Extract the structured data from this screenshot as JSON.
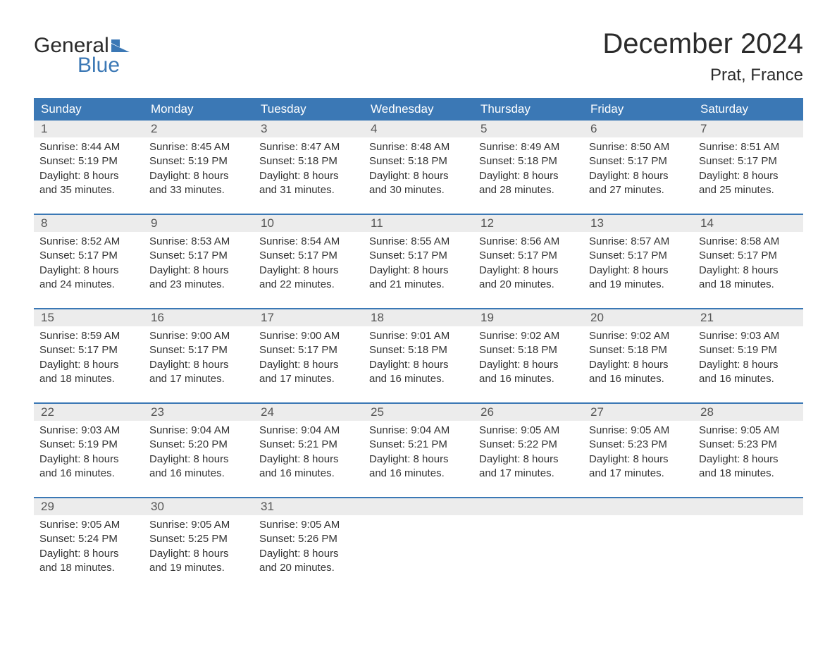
{
  "logo": {
    "text1": "General",
    "text2": "Blue",
    "flag_color": "#3b78b5"
  },
  "title": "December 2024",
  "location": "Prat, France",
  "colors": {
    "header_bg": "#3b78b5",
    "header_text": "#ffffff",
    "strip_bg": "#ececec",
    "border": "#3b78b5",
    "text": "#333333"
  },
  "day_headers": [
    "Sunday",
    "Monday",
    "Tuesday",
    "Wednesday",
    "Thursday",
    "Friday",
    "Saturday"
  ],
  "weeks": [
    [
      {
        "n": "1",
        "sunrise": "8:44 AM",
        "sunset": "5:19 PM",
        "daylight": "8 hours and 35 minutes."
      },
      {
        "n": "2",
        "sunrise": "8:45 AM",
        "sunset": "5:19 PM",
        "daylight": "8 hours and 33 minutes."
      },
      {
        "n": "3",
        "sunrise": "8:47 AM",
        "sunset": "5:18 PM",
        "daylight": "8 hours and 31 minutes."
      },
      {
        "n": "4",
        "sunrise": "8:48 AM",
        "sunset": "5:18 PM",
        "daylight": "8 hours and 30 minutes."
      },
      {
        "n": "5",
        "sunrise": "8:49 AM",
        "sunset": "5:18 PM",
        "daylight": "8 hours and 28 minutes."
      },
      {
        "n": "6",
        "sunrise": "8:50 AM",
        "sunset": "5:17 PM",
        "daylight": "8 hours and 27 minutes."
      },
      {
        "n": "7",
        "sunrise": "8:51 AM",
        "sunset": "5:17 PM",
        "daylight": "8 hours and 25 minutes."
      }
    ],
    [
      {
        "n": "8",
        "sunrise": "8:52 AM",
        "sunset": "5:17 PM",
        "daylight": "8 hours and 24 minutes."
      },
      {
        "n": "9",
        "sunrise": "8:53 AM",
        "sunset": "5:17 PM",
        "daylight": "8 hours and 23 minutes."
      },
      {
        "n": "10",
        "sunrise": "8:54 AM",
        "sunset": "5:17 PM",
        "daylight": "8 hours and 22 minutes."
      },
      {
        "n": "11",
        "sunrise": "8:55 AM",
        "sunset": "5:17 PM",
        "daylight": "8 hours and 21 minutes."
      },
      {
        "n": "12",
        "sunrise": "8:56 AM",
        "sunset": "5:17 PM",
        "daylight": "8 hours and 20 minutes."
      },
      {
        "n": "13",
        "sunrise": "8:57 AM",
        "sunset": "5:17 PM",
        "daylight": "8 hours and 19 minutes."
      },
      {
        "n": "14",
        "sunrise": "8:58 AM",
        "sunset": "5:17 PM",
        "daylight": "8 hours and 18 minutes."
      }
    ],
    [
      {
        "n": "15",
        "sunrise": "8:59 AM",
        "sunset": "5:17 PM",
        "daylight": "8 hours and 18 minutes."
      },
      {
        "n": "16",
        "sunrise": "9:00 AM",
        "sunset": "5:17 PM",
        "daylight": "8 hours and 17 minutes."
      },
      {
        "n": "17",
        "sunrise": "9:00 AM",
        "sunset": "5:17 PM",
        "daylight": "8 hours and 17 minutes."
      },
      {
        "n": "18",
        "sunrise": "9:01 AM",
        "sunset": "5:18 PM",
        "daylight": "8 hours and 16 minutes."
      },
      {
        "n": "19",
        "sunrise": "9:02 AM",
        "sunset": "5:18 PM",
        "daylight": "8 hours and 16 minutes."
      },
      {
        "n": "20",
        "sunrise": "9:02 AM",
        "sunset": "5:18 PM",
        "daylight": "8 hours and 16 minutes."
      },
      {
        "n": "21",
        "sunrise": "9:03 AM",
        "sunset": "5:19 PM",
        "daylight": "8 hours and 16 minutes."
      }
    ],
    [
      {
        "n": "22",
        "sunrise": "9:03 AM",
        "sunset": "5:19 PM",
        "daylight": "8 hours and 16 minutes."
      },
      {
        "n": "23",
        "sunrise": "9:04 AM",
        "sunset": "5:20 PM",
        "daylight": "8 hours and 16 minutes."
      },
      {
        "n": "24",
        "sunrise": "9:04 AM",
        "sunset": "5:21 PM",
        "daylight": "8 hours and 16 minutes."
      },
      {
        "n": "25",
        "sunrise": "9:04 AM",
        "sunset": "5:21 PM",
        "daylight": "8 hours and 16 minutes."
      },
      {
        "n": "26",
        "sunrise": "9:05 AM",
        "sunset": "5:22 PM",
        "daylight": "8 hours and 17 minutes."
      },
      {
        "n": "27",
        "sunrise": "9:05 AM",
        "sunset": "5:23 PM",
        "daylight": "8 hours and 17 minutes."
      },
      {
        "n": "28",
        "sunrise": "9:05 AM",
        "sunset": "5:23 PM",
        "daylight": "8 hours and 18 minutes."
      }
    ],
    [
      {
        "n": "29",
        "sunrise": "9:05 AM",
        "sunset": "5:24 PM",
        "daylight": "8 hours and 18 minutes."
      },
      {
        "n": "30",
        "sunrise": "9:05 AM",
        "sunset": "5:25 PM",
        "daylight": "8 hours and 19 minutes."
      },
      {
        "n": "31",
        "sunrise": "9:05 AM",
        "sunset": "5:26 PM",
        "daylight": "8 hours and 20 minutes."
      },
      null,
      null,
      null,
      null
    ]
  ],
  "labels": {
    "sunrise": "Sunrise: ",
    "sunset": "Sunset: ",
    "daylight": "Daylight: "
  }
}
